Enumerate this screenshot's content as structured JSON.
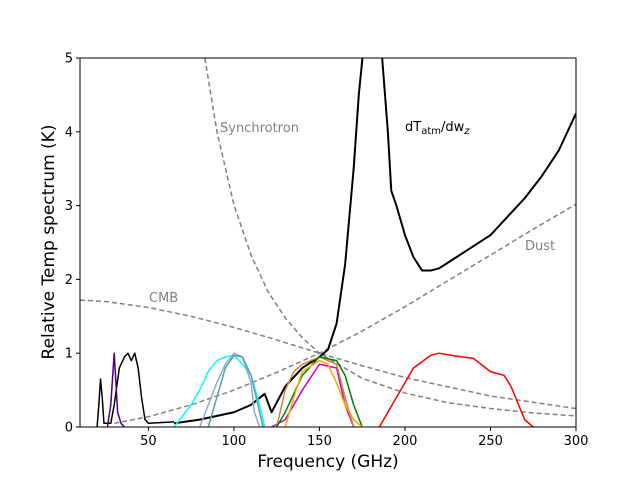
{
  "chart_data": {
    "type": "line",
    "xlabel": "Frequency (GHz)",
    "ylabel": "Relative Temp spectrum (K)",
    "xlim": [
      10,
      300
    ],
    "ylim": [
      0,
      5
    ],
    "xticks": [
      50,
      100,
      150,
      200,
      250,
      300
    ],
    "yticks": [
      0,
      1,
      2,
      3,
      4,
      5
    ],
    "annotations": [
      "Synchrotron",
      "CMB",
      "Dust"
    ],
    "atm_label": [
      "dT",
      "atm",
      "/dw",
      "z"
    ],
    "series": [
      {
        "color": "#808080",
        "linestyle": "dashed",
        "linewidth": 1.5,
        "x": [
          83,
          90,
          100,
          110,
          120,
          130,
          140,
          150,
          175,
          200,
          225,
          250,
          275,
          300
        ],
        "values": [
          5.0,
          4.01,
          3.01,
          2.33,
          1.83,
          1.48,
          1.21,
          1.0,
          0.66,
          0.46,
          0.33,
          0.25,
          0.19,
          0.15
        ]
      },
      {
        "color": "#808080",
        "linestyle": "dashed",
        "linewidth": 1.5,
        "x": [
          10,
          25,
          50,
          75,
          100,
          125,
          150,
          175,
          200,
          250,
          300
        ],
        "values": [
          1.72,
          1.7,
          1.62,
          1.5,
          1.35,
          1.18,
          1.0,
          0.83,
          0.67,
          0.42,
          0.25
        ]
      },
      {
        "color": "#808080",
        "linestyle": "dashed",
        "linewidth": 1.5,
        "x": [
          30,
          50,
          75,
          100,
          125,
          150,
          175,
          200,
          225,
          250,
          275,
          300
        ],
        "values": [
          0.05,
          0.14,
          0.3,
          0.5,
          0.74,
          1.0,
          1.3,
          1.63,
          1.98,
          2.33,
          2.68,
          3.02
        ]
      },
      {
        "color": "#000000",
        "linestyle": "solid",
        "linewidth": 2,
        "x": [
          65,
          80,
          100,
          110,
          118,
          122,
          130,
          140,
          150,
          155,
          160,
          165,
          170,
          173,
          176,
          186,
          188,
          190,
          192,
          195,
          200,
          205,
          210,
          215,
          220,
          230,
          240,
          250,
          260,
          270,
          280,
          290,
          295,
          300
        ],
        "values": [
          0.05,
          0.1,
          0.2,
          0.3,
          0.45,
          0.2,
          0.55,
          0.8,
          0.95,
          1.05,
          1.4,
          2.2,
          3.5,
          4.5,
          5.2,
          5.2,
          4.6,
          4.0,
          3.2,
          3.0,
          2.6,
          2.3,
          2.12,
          2.12,
          2.15,
          2.3,
          2.45,
          2.6,
          2.85,
          3.1,
          3.4,
          3.75,
          4.0,
          4.25
        ]
      },
      {
        "color": "#000000",
        "linestyle": "solid",
        "linewidth": 1.5,
        "x": [
          20,
          21,
          22,
          23,
          24,
          26,
          28,
          30,
          33,
          36,
          38,
          40,
          42,
          44,
          46,
          48,
          50,
          65
        ],
        "values": [
          0,
          0.3,
          0.65,
          0.4,
          0.05,
          0.05,
          0.05,
          0.3,
          0.8,
          0.95,
          1.0,
          0.9,
          1.0,
          0.8,
          0.4,
          0.1,
          0.05,
          0.07
        ]
      },
      {
        "color": "#4b0082",
        "linestyle": "solid",
        "linewidth": 1.5,
        "x": [
          26,
          28,
          30,
          31,
          32,
          34,
          36
        ],
        "values": [
          0,
          0.3,
          1.0,
          0.6,
          0.2,
          0.05,
          0
        ]
      },
      {
        "color": "#00ffff",
        "linestyle": "solid",
        "linewidth": 1.5,
        "x": [
          65,
          70,
          75,
          80,
          85,
          90,
          95,
          100,
          105,
          110,
          115,
          118
        ],
        "values": [
          0,
          0.15,
          0.3,
          0.5,
          0.75,
          0.9,
          0.95,
          0.97,
          0.85,
          0.7,
          0.3,
          0
        ]
      },
      {
        "color": "#87aadd",
        "linestyle": "solid",
        "linewidth": 1.5,
        "x": [
          80,
          85,
          90,
          95,
          100,
          105,
          110,
          112,
          115
        ],
        "values": [
          0,
          0.3,
          0.6,
          0.85,
          1.0,
          0.95,
          0.6,
          0.2,
          0
        ]
      },
      {
        "color": "#5f9ea0",
        "linestyle": "solid",
        "linewidth": 1.5,
        "x": [
          85,
          90,
          95,
          100,
          105,
          110,
          114,
          117
        ],
        "values": [
          0,
          0.4,
          0.8,
          0.97,
          0.95,
          0.7,
          0.3,
          0
        ]
      },
      {
        "color": "#cc00cc",
        "linestyle": "solid",
        "linewidth": 1.5,
        "x": [
          122,
          130,
          140,
          150,
          160,
          165,
          170
        ],
        "values": [
          0,
          0.1,
          0.5,
          0.85,
          0.8,
          0.3,
          0
        ]
      },
      {
        "color": "#cd853f",
        "linestyle": "solid",
        "linewidth": 1.5,
        "x": [
          125,
          130,
          135,
          140,
          145,
          150,
          155,
          160,
          165,
          170
        ],
        "values": [
          0,
          0.5,
          0.75,
          0.85,
          0.9,
          0.95,
          0.9,
          0.85,
          0.4,
          0
        ]
      },
      {
        "color": "#008000",
        "linestyle": "solid",
        "linewidth": 1.5,
        "x": [
          125,
          130,
          140,
          150,
          160,
          165,
          170,
          175
        ],
        "values": [
          0,
          0.2,
          0.7,
          0.95,
          0.9,
          0.7,
          0.3,
          0
        ]
      },
      {
        "color": "#ffa500",
        "linestyle": "solid",
        "linewidth": 1.5,
        "x": [
          130,
          135,
          140,
          150,
          155,
          160,
          165,
          170,
          175
        ],
        "values": [
          0,
          0.4,
          0.75,
          0.9,
          0.85,
          0.6,
          0.3,
          0.1,
          0
        ]
      },
      {
        "color": "#ff0000",
        "linestyle": "solid",
        "linewidth": 1.5,
        "x": [
          185,
          195,
          205,
          215,
          220,
          230,
          240,
          250,
          258,
          262,
          270,
          275
        ],
        "values": [
          0,
          0.4,
          0.8,
          0.97,
          1.0,
          0.96,
          0.93,
          0.75,
          0.7,
          0.55,
          0.1,
          0
        ]
      }
    ]
  }
}
